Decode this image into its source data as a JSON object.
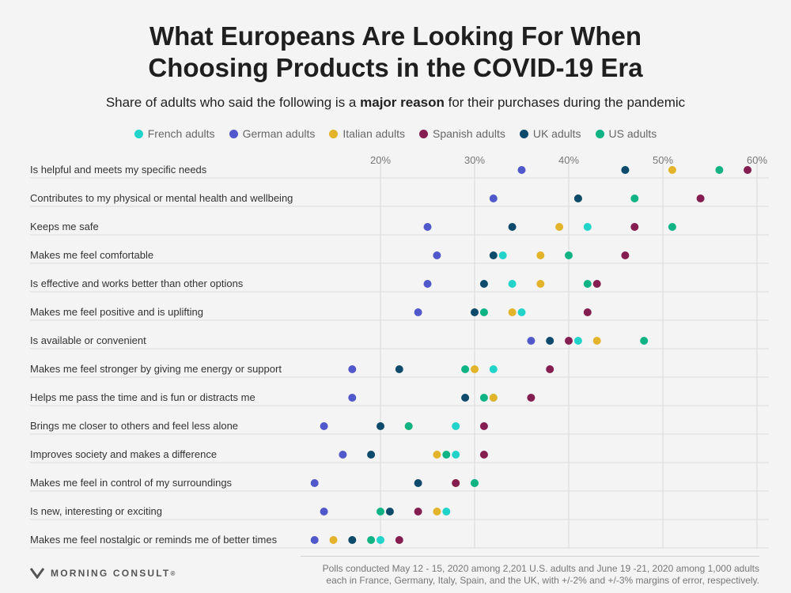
{
  "title_lines": [
    "What Europeans Are Looking For When",
    "Choosing Products in the COVID-19 Era"
  ],
  "subtitle": {
    "pre": "Share of adults who said the following is a ",
    "bold": "major reason",
    "post": " for their purchases during the pandemic"
  },
  "footer": {
    "brand": "MORNING CONSULT",
    "brand_mark": "®",
    "note_lines": [
      "Polls conducted May 12 - 15, 2020 among 2,201 U.S. adults and June 19 -21, 2020 among 1,000 adults",
      "each in France, Germany, Italy, Spain, and the UK, with +/-2% and +/-3% margins of error, respectively."
    ]
  },
  "chart_data": {
    "type": "scatter",
    "orientation": "horizontal-dot-plot",
    "xlim": [
      12,
      60
    ],
    "xticks": [
      20,
      30,
      40,
      50,
      60
    ],
    "xtick_labels": [
      "20%",
      "30%",
      "40%",
      "50%",
      "60%"
    ],
    "grid": true,
    "legend_position": "top-center",
    "categories": [
      "Is helpful and meets my specific needs",
      "Contributes to my physical or mental health and wellbeing",
      "Keeps me safe",
      "Makes me feel comfortable",
      "Is effective and works better than other options",
      "Makes me feel positive and is uplifting",
      "Is available or convenient",
      "Makes me feel stronger by giving me energy or support",
      "Helps me pass the time and is fun or distracts me",
      "Brings me closer to others and feel less alone",
      "Improves society and makes a difference",
      "Makes me feel in control of my surroundings",
      "Is new, interesting or exciting",
      "Makes me feel nostalgic or reminds me of better times"
    ],
    "series": [
      {
        "name": "French adults",
        "color": "#22d3c9",
        "values": [
          46,
          41,
          42,
          33,
          34,
          35,
          41,
          32,
          32,
          28,
          28,
          30,
          27,
          20
        ]
      },
      {
        "name": "German adults",
        "color": "#5058cc",
        "values": [
          35,
          32,
          25,
          26,
          25,
          24,
          36,
          17,
          17,
          14,
          16,
          13,
          14,
          13
        ]
      },
      {
        "name": "Italian adults",
        "color": "#e3b32a",
        "values": [
          51,
          41,
          39,
          37,
          37,
          34,
          43,
          30,
          32,
          23,
          26,
          28,
          26,
          15
        ]
      },
      {
        "name": "Spanish adults",
        "color": "#851d51",
        "values": [
          59,
          54,
          47,
          46,
          43,
          42,
          40,
          38,
          36,
          31,
          31,
          28,
          24,
          22
        ]
      },
      {
        "name": "UK adults",
        "color": "#0d4a6b",
        "values": [
          46,
          41,
          34,
          32,
          31,
          30,
          38,
          22,
          29,
          20,
          19,
          24,
          21,
          17
        ]
      },
      {
        "name": "US adults",
        "color": "#10b383",
        "values": [
          56,
          47,
          51,
          40,
          42,
          31,
          48,
          29,
          31,
          23,
          27,
          30,
          20,
          19
        ]
      }
    ]
  }
}
